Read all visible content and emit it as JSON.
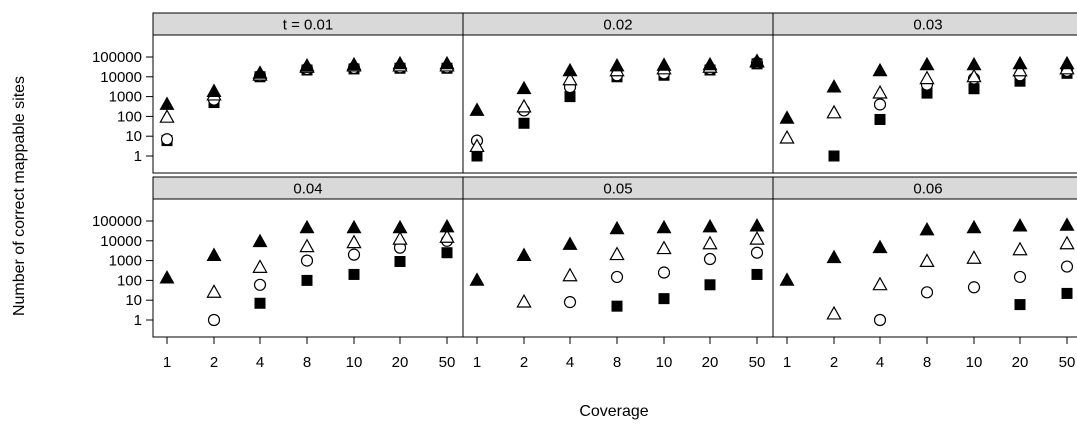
{
  "chart_data": {
    "type": "scatter",
    "xlabel": "Coverage",
    "ylabel": "Number of correct mappable sites",
    "x_categories": [
      "1",
      "2",
      "4",
      "8",
      "10",
      "20",
      "50"
    ],
    "y_scale": "log10",
    "y_ticks": [
      1,
      10,
      100,
      1000,
      10000,
      100000
    ],
    "y_tick_labels": [
      "1",
      "10",
      "100",
      "1000",
      "10000",
      "100000"
    ],
    "marker_colors": {
      "filled": "#000000",
      "open_stroke": "#000000",
      "open_fill": "#ffffff"
    },
    "series_markers": [
      {
        "marker": "filled-triangle"
      },
      {
        "marker": "open-triangle"
      },
      {
        "marker": "open-circle"
      },
      {
        "marker": "filled-square"
      }
    ],
    "panels": [
      {
        "label": "t = 0.01",
        "series": [
          [
            400,
            1800,
            15000,
            35000,
            40000,
            45000,
            45000
          ],
          [
            90,
            1200,
            12000,
            30000,
            35000,
            35000,
            35000
          ],
          [
            7,
            700,
            11000,
            25000,
            28000,
            30000,
            30000
          ],
          [
            6,
            500,
            10000,
            22000,
            25000,
            27000,
            27000
          ]
        ]
      },
      {
        "label": "0.02",
        "series": [
          [
            200,
            2500,
            20000,
            35000,
            38000,
            40000,
            60000
          ],
          [
            3,
            300,
            7000,
            20000,
            25000,
            30000,
            55000
          ],
          [
            6,
            200,
            3000,
            12000,
            15000,
            25000,
            50000
          ],
          [
            1,
            45,
            1000,
            10000,
            12000,
            22000,
            45000
          ]
        ]
      },
      {
        "label": "0.03",
        "series": [
          [
            80,
            3000,
            20000,
            40000,
            40000,
            45000,
            45000
          ],
          [
            8,
            150,
            1500,
            8000,
            10000,
            20000,
            25000
          ],
          [
            null,
            null,
            400,
            4000,
            8000,
            12000,
            20000
          ],
          [
            null,
            1,
            70,
            1500,
            2500,
            6000,
            15000
          ]
        ]
      },
      {
        "label": "0.04",
        "series": [
          [
            130,
            1800,
            9000,
            45000,
            45000,
            45000,
            50000
          ],
          [
            null,
            25,
            450,
            5000,
            8000,
            12000,
            15000
          ],
          [
            null,
            1,
            60,
            1000,
            2000,
            4500,
            10000
          ],
          [
            null,
            null,
            7,
            100,
            200,
            900,
            2500
          ]
        ]
      },
      {
        "label": "0.05",
        "series": [
          [
            100,
            1800,
            6500,
            40000,
            45000,
            50000,
            55000
          ],
          [
            null,
            8,
            170,
            2000,
            4000,
            7000,
            12000
          ],
          [
            null,
            null,
            8,
            150,
            250,
            1200,
            2500
          ],
          [
            null,
            null,
            null,
            5,
            12,
            60,
            200
          ]
        ]
      },
      {
        "label": "0.06",
        "series": [
          [
            100,
            1400,
            4500,
            35000,
            45000,
            55000,
            60000
          ],
          [
            null,
            2,
            60,
            900,
            1300,
            3500,
            7000
          ],
          [
            null,
            null,
            1,
            25,
            45,
            150,
            500
          ],
          [
            null,
            null,
            null,
            null,
            null,
            6,
            22
          ]
        ]
      }
    ]
  }
}
